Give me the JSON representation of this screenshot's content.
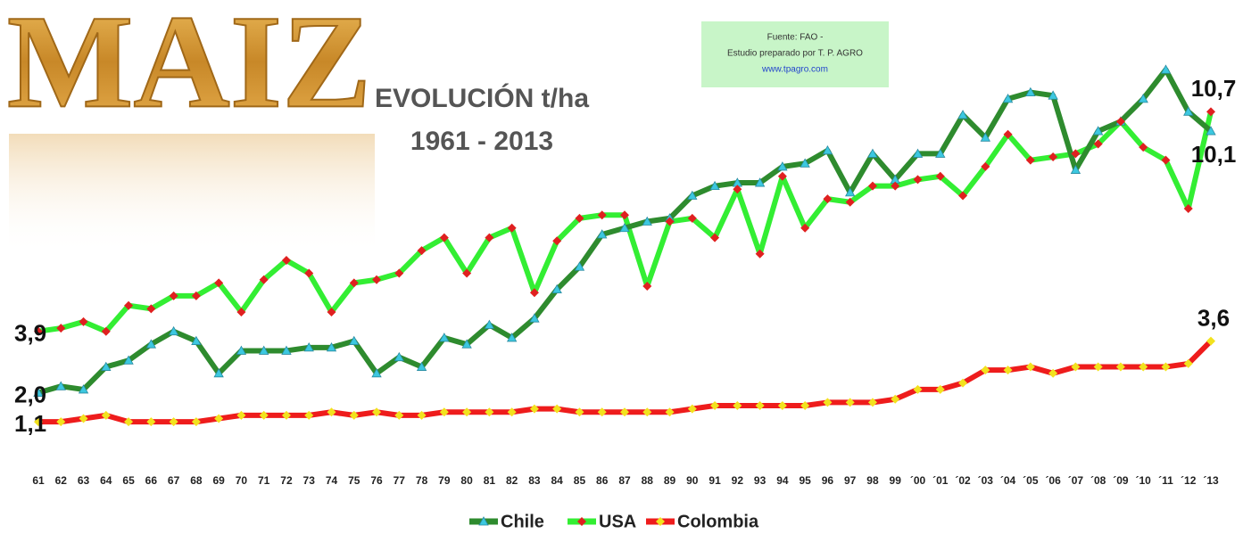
{
  "chart_data": {
    "type": "line",
    "logo": "MAIZ",
    "title": "EVOLUCIÓN t/ha",
    "subtitle": "1961 - 2013",
    "source": {
      "line1": "Fuente: FAO -",
      "line2": "Estudio preparado por   T. P. AGRO",
      "line3": "www.tpagro.com"
    },
    "categories": [
      "61",
      "62",
      "63",
      "64",
      "65",
      "66",
      "67",
      "68",
      "69",
      "70",
      "71",
      "72",
      "73",
      "74",
      "75",
      "76",
      "77",
      "78",
      "79",
      "80",
      "81",
      "82",
      "83",
      "84",
      "85",
      "86",
      "87",
      "88",
      "89",
      "90",
      "91",
      "92",
      "93",
      "94",
      "95",
      "96",
      "97",
      "98",
      "99",
      "´00",
      "´01",
      "´02",
      "´03",
      "´04",
      "´05",
      "´06",
      "´07",
      "´08",
      "´09",
      "´10",
      "´11",
      "´12",
      "´13"
    ],
    "ylim": [
      0,
      13
    ],
    "series": [
      {
        "name": "Chile",
        "color": "#2e8b2e",
        "marker_color": "#3cc8e0",
        "values": [
          2.0,
          2.2,
          2.1,
          2.8,
          3.0,
          3.5,
          3.9,
          3.6,
          2.6,
          3.3,
          3.3,
          3.3,
          3.4,
          3.4,
          3.6,
          2.6,
          3.1,
          2.8,
          3.7,
          3.5,
          4.1,
          3.7,
          4.3,
          5.2,
          5.9,
          6.9,
          7.1,
          7.3,
          7.4,
          8.1,
          8.4,
          8.5,
          8.5,
          9.0,
          9.1,
          9.5,
          8.2,
          9.4,
          8.6,
          9.4,
          9.4,
          10.6,
          9.9,
          11.1,
          11.3,
          11.2,
          8.9,
          10.1,
          10.4,
          11.1,
          12.0,
          10.7,
          10.1
        ],
        "value_labels": [
          "2,0",
          null,
          null,
          null,
          null,
          null,
          null,
          null,
          null,
          null,
          null,
          null,
          null,
          null,
          null,
          null,
          null,
          null,
          null,
          null,
          null,
          null,
          null,
          null,
          null,
          null,
          null,
          null,
          null,
          null,
          null,
          null,
          null,
          null,
          null,
          null,
          null,
          null,
          null,
          null,
          null,
          null,
          null,
          null,
          null,
          null,
          null,
          null,
          null,
          null,
          null,
          null,
          "10,1"
        ]
      },
      {
        "name": "USA",
        "color": "#33ee33",
        "marker_color": "#e02020",
        "values": [
          3.9,
          4.0,
          4.2,
          3.9,
          4.7,
          4.6,
          5.0,
          5.0,
          5.4,
          4.5,
          5.5,
          6.1,
          5.7,
          4.5,
          5.4,
          5.5,
          5.7,
          6.4,
          6.8,
          5.7,
          6.8,
          7.1,
          5.1,
          6.7,
          7.4,
          7.5,
          7.5,
          5.3,
          7.3,
          7.4,
          6.8,
          8.3,
          6.3,
          8.7,
          7.1,
          8.0,
          7.9,
          8.4,
          8.4,
          8.6,
          8.7,
          8.1,
          9.0,
          10.0,
          9.2,
          9.3,
          9.4,
          9.7,
          10.4,
          9.6,
          9.2,
          7.7,
          10.7
        ],
        "value_labels": [
          "3,9",
          null,
          null,
          null,
          null,
          null,
          null,
          null,
          null,
          null,
          null,
          null,
          null,
          null,
          null,
          null,
          null,
          null,
          null,
          null,
          null,
          null,
          null,
          null,
          null,
          null,
          null,
          null,
          null,
          null,
          null,
          null,
          null,
          null,
          null,
          null,
          null,
          null,
          null,
          null,
          null,
          null,
          null,
          null,
          null,
          null,
          null,
          null,
          null,
          null,
          null,
          null,
          "10,7"
        ]
      },
      {
        "name": "Colombia",
        "color": "#ee1c1c",
        "marker_color": "#f2e21e",
        "values": [
          1.1,
          1.1,
          1.2,
          1.3,
          1.1,
          1.1,
          1.1,
          1.1,
          1.2,
          1.3,
          1.3,
          1.3,
          1.3,
          1.4,
          1.3,
          1.4,
          1.3,
          1.3,
          1.4,
          1.4,
          1.4,
          1.4,
          1.5,
          1.5,
          1.4,
          1.4,
          1.4,
          1.4,
          1.4,
          1.5,
          1.6,
          1.6,
          1.6,
          1.6,
          1.6,
          1.7,
          1.7,
          1.7,
          1.8,
          2.1,
          2.1,
          2.3,
          2.7,
          2.7,
          2.8,
          2.6,
          2.8,
          2.8,
          2.8,
          2.8,
          2.8,
          2.9,
          3.6
        ],
        "value_labels": [
          "1,1",
          null,
          null,
          null,
          null,
          null,
          null,
          null,
          null,
          null,
          null,
          null,
          null,
          null,
          null,
          null,
          null,
          null,
          null,
          null,
          null,
          null,
          null,
          null,
          null,
          null,
          null,
          null,
          null,
          null,
          null,
          null,
          null,
          null,
          null,
          null,
          null,
          null,
          null,
          null,
          null,
          null,
          null,
          null,
          null,
          null,
          null,
          null,
          null,
          null,
          null,
          null,
          "3,6"
        ]
      }
    ]
  }
}
